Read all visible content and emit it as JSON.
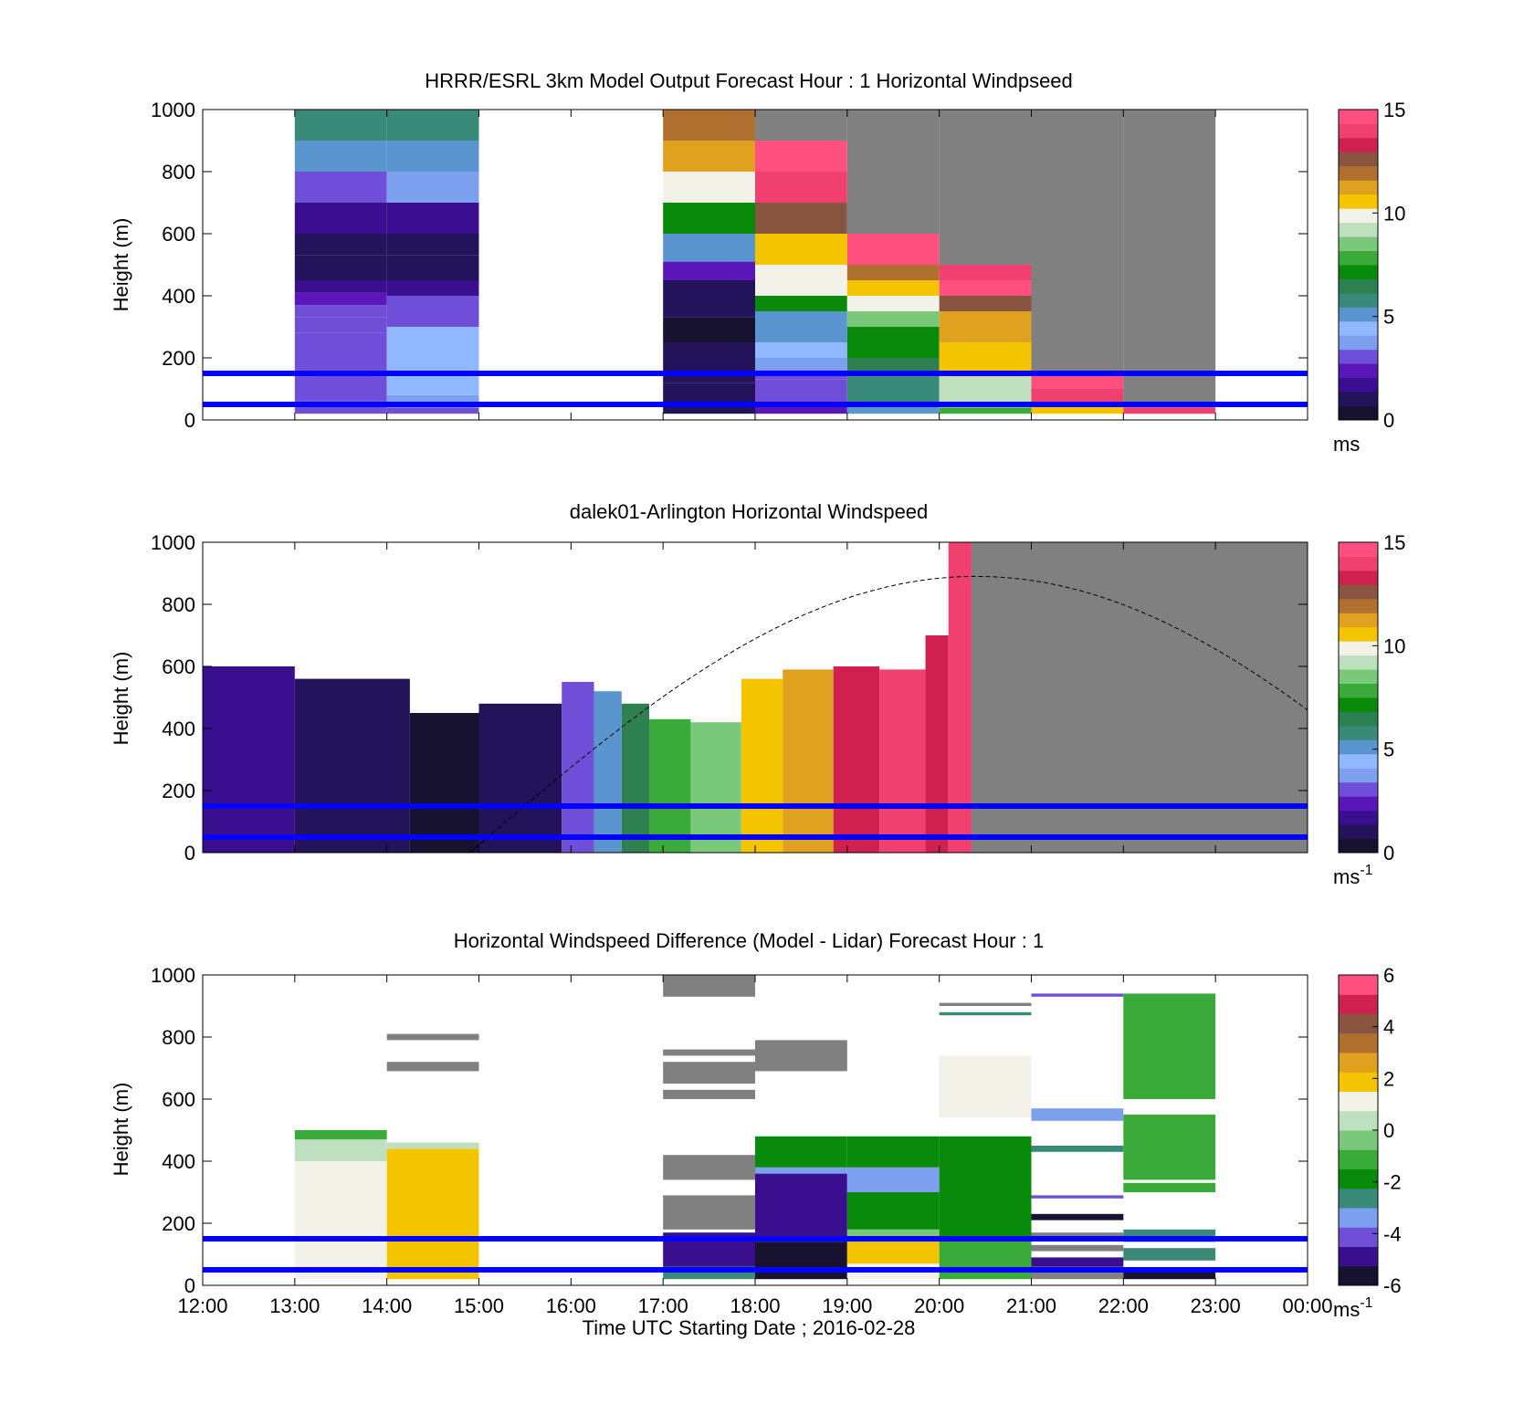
{
  "palettes": {
    "speed": [
      "#161230",
      "#23135a",
      "#3a0f8f",
      "#5a16b8",
      "#6f4fd8",
      "#7ca0ee",
      "#8fb8ff",
      "#5b95cf",
      "#3a8a7a",
      "#2e8050",
      "#0a8a0a",
      "#3aaa3a",
      "#7ac97a",
      "#bfe0bf",
      "#f2f2e8",
      "#f5c400",
      "#e0a020",
      "#b07030",
      "#8a5540",
      "#d02050",
      "#f04070",
      "#ff5080"
    ],
    "diff": [
      "#161230",
      "#3a0f8f",
      "#6f4fd8",
      "#7ca0ee",
      "#3a8a7a",
      "#0a8a0a",
      "#3aaa3a",
      "#7ac97a",
      "#bfe0bf",
      "#f2f2e8",
      "#f5c400",
      "#e0a020",
      "#b07030",
      "#8a5540",
      "#d02050",
      "#ff5080"
    ],
    "missing": "#808080",
    "marker_line": "#0000ff"
  },
  "x_axis": {
    "ticks": [
      "12:00",
      "13:00",
      "14:00",
      "15:00",
      "16:00",
      "17:00",
      "18:00",
      "19:00",
      "20:00",
      "21:00",
      "22:00",
      "23:00",
      "00:00"
    ],
    "label": "Time UTC  Starting Date ; 2016-02-28"
  },
  "chart_data": [
    {
      "type": "heatmap",
      "title": "HRRR/ESRL 3km Model Output   Forecast Hour : 1 Horizontal Windpseed",
      "ylabel": "Height (m)",
      "ylim": [
        0,
        1000
      ],
      "yticks": [
        "0",
        "200",
        "400",
        "600",
        "800",
        "1000"
      ],
      "colorbar": {
        "ticks": [
          "0",
          "5",
          "10",
          "15"
        ],
        "unit": "ms",
        "unit_sup": "",
        "range": [
          0,
          15
        ]
      },
      "marker_heights_m": [
        50,
        150
      ],
      "blocks": [
        {
          "hour": 13,
          "segments": [
            [
              20,
              60,
              3
            ],
            [
              60,
              100,
              3.2
            ],
            [
              100,
              200,
              3.4
            ],
            [
              200,
              280,
              3.3
            ],
            [
              280,
              330,
              3.2
            ],
            [
              330,
              370,
              2.8
            ],
            [
              370,
              410,
              2.2
            ],
            [
              410,
              450,
              2
            ],
            [
              450,
              530,
              1.2
            ],
            [
              530,
              600,
              1.0
            ],
            [
              600,
              700,
              1.6
            ],
            [
              700,
              800,
              3.2
            ],
            [
              800,
              900,
              5
            ],
            [
              900,
              1000,
              5.8
            ]
          ]
        },
        {
          "hour": 14,
          "segments": [
            [
              20,
              40,
              3.3
            ],
            [
              40,
              80,
              4
            ],
            [
              80,
              300,
              4.2
            ],
            [
              300,
              350,
              3.2
            ],
            [
              350,
              400,
              3
            ],
            [
              400,
              450,
              2
            ],
            [
              450,
              530,
              1.2
            ],
            [
              530,
              600,
              1.0
            ],
            [
              600,
              700,
              1.6
            ],
            [
              700,
              800,
              3.6
            ],
            [
              800,
              900,
              5.4
            ],
            [
              900,
              1000,
              5.9
            ]
          ]
        },
        {
          "hour": 17,
          "segments": [
            [
              20,
              120,
              1.0
            ],
            [
              120,
              250,
              0.8
            ],
            [
              250,
              330,
              0.5
            ],
            [
              330,
              400,
              0.8
            ],
            [
              400,
              450,
              1.2
            ],
            [
              450,
              510,
              2.4
            ],
            [
              510,
              600,
              4.8
            ],
            [
              600,
              700,
              7.0
            ],
            [
              700,
              800,
              10.2
            ],
            [
              800,
              900,
              11.0
            ],
            [
              900,
              1000,
              12.2
            ]
          ]
        },
        {
          "hour": 18,
          "segments": [
            [
              20,
              60,
              2.6
            ],
            [
              60,
              130,
              3.0
            ],
            [
              130,
              160,
              3.4
            ],
            [
              160,
              200,
              3.6
            ],
            [
              200,
              250,
              4.2
            ],
            [
              250,
              300,
              5.0
            ],
            [
              300,
              350,
              5.2
            ],
            [
              350,
              400,
              7.0
            ],
            [
              400,
              450,
              9.8
            ],
            [
              450,
              500,
              9.8
            ],
            [
              500,
              600,
              10.6
            ],
            [
              600,
              700,
              12.3
            ],
            [
              700,
              800,
              14.2
            ],
            [
              800,
              900,
              14.8
            ],
            [
              900,
              1000,
              "missing"
            ]
          ]
        },
        {
          "hour": 19,
          "segments": [
            [
              20,
              40,
              4.8
            ],
            [
              40,
              140,
              5.8
            ],
            [
              140,
              200,
              6.3
            ],
            [
              200,
              300,
              7.0
            ],
            [
              300,
              350,
              8.8
            ],
            [
              350,
              400,
              9.6
            ],
            [
              400,
              450,
              10.6
            ],
            [
              450,
              500,
              12.2
            ],
            [
              500,
              600,
              15
            ],
            [
              600,
              1000,
              "missing"
            ]
          ]
        },
        {
          "hour": 20,
          "segments": [
            [
              20,
              40,
              7.5
            ],
            [
              40,
              140,
              9.3
            ],
            [
              140,
              250,
              10.5
            ],
            [
              250,
              350,
              11.5
            ],
            [
              350,
              400,
              12.5
            ],
            [
              400,
              450,
              14.5
            ],
            [
              450,
              500,
              13.8
            ],
            [
              500,
              1000,
              "missing"
            ]
          ]
        },
        {
          "hour": 21,
          "segments": [
            [
              20,
              50,
              10.8
            ],
            [
              50,
              100,
              13.8
            ],
            [
              100,
              150,
              14.5
            ],
            [
              150,
              1000,
              "missing"
            ]
          ]
        },
        {
          "hour": 22,
          "segments": [
            [
              20,
              40,
              14
            ],
            [
              40,
              1000,
              "missing"
            ]
          ]
        }
      ]
    },
    {
      "type": "heatmap",
      "title": "dalek01-Arlington  Horizontal Windspeed",
      "ylabel": "Height (m)",
      "ylim": [
        0,
        1000
      ],
      "yticks": [
        "0",
        "200",
        "400",
        "600",
        "800",
        "1000"
      ],
      "colorbar": {
        "ticks": [
          "0",
          "5",
          "10",
          "15"
        ],
        "unit": "ms",
        "unit_sup": "-1",
        "range": [
          0,
          15
        ]
      },
      "marker_heights_m": [
        50,
        150
      ],
      "columns": [
        {
          "t": [
            12.0,
            13.0
          ],
          "top": 600,
          "v": 1.6
        },
        {
          "t": [
            13.0,
            14.25
          ],
          "top": 560,
          "v": 1.1
        },
        {
          "t": [
            14.25,
            15.0
          ],
          "top": 450,
          "v": 0.6
        },
        {
          "t": [
            15.0,
            15.9
          ],
          "top": 480,
          "v": 0.8
        },
        {
          "t": [
            15.9,
            16.25
          ],
          "top": 550,
          "v": 2.8
        },
        {
          "t": [
            16.25,
            16.55
          ],
          "top": 520,
          "v": 5.0
        },
        {
          "t": [
            16.55,
            16.85
          ],
          "top": 480,
          "v": 6.3
        },
        {
          "t": [
            16.85,
            17.3
          ],
          "top": 430,
          "v": 7.6
        },
        {
          "t": [
            17.3,
            17.85
          ],
          "top": 420,
          "v": 8.4
        },
        {
          "t": [
            17.85,
            18.3
          ],
          "top": 560,
          "v": 10.4
        },
        {
          "t": [
            18.3,
            18.85
          ],
          "top": 590,
          "v": 11.3
        },
        {
          "t": [
            18.85,
            19.35
          ],
          "top": 600,
          "v": 13.4
        },
        {
          "t": [
            19.35,
            19.85
          ],
          "top": 590,
          "v": 14.2
        },
        {
          "t": [
            19.85,
            20.1
          ],
          "top": 700,
          "v": 13.6
        },
        {
          "t": [
            20.1,
            20.35
          ],
          "top": 1000,
          "v": 13.8
        }
      ],
      "missing_from_hour": 20.35,
      "curve": {
        "peak_height_m": 890,
        "peak_hour": 20.4,
        "start_hour": 14.9,
        "end_hour": 24.0,
        "end_height_m": 430
      }
    },
    {
      "type": "heatmap",
      "title": "Horizontal Windspeed Difference (Model - Lidar) Forecast Hour : 1",
      "ylabel": "Height (m)",
      "ylim": [
        0,
        1000
      ],
      "yticks": [
        "0",
        "200",
        "400",
        "600",
        "800",
        "1000"
      ],
      "colorbar": {
        "ticks": [
          "-6",
          "-4",
          "-2",
          "0",
          "2",
          "4",
          "6"
        ],
        "unit": "ms",
        "unit_sup": "-1",
        "range": [
          -6,
          6
        ]
      },
      "marker_heights_m": [
        50,
        150
      ],
      "blocks": [
        {
          "hour": 13,
          "segments": [
            [
              20,
              400,
              1.4
            ],
            [
              400,
              470,
              0.6
            ],
            [
              470,
              500,
              -0.8
            ]
          ]
        },
        {
          "hour": 14,
          "segments": [
            [
              20,
              440,
              2.2
            ],
            [
              440,
              460,
              0.2
            ],
            [
              690,
              720,
              "missing"
            ],
            [
              790,
              810,
              "missing"
            ]
          ]
        },
        {
          "hour": 17,
          "segments": [
            [
              20,
              60,
              -2.6
            ],
            [
              60,
              170,
              -5.2
            ],
            [
              180,
              290,
              "missing"
            ],
            [
              340,
              420,
              "missing"
            ],
            [
              600,
              630,
              "missing"
            ],
            [
              650,
              720,
              "missing"
            ],
            [
              740,
              760,
              "missing"
            ],
            [
              930,
              1000,
              "missing"
            ]
          ]
        },
        {
          "hour": 18,
          "segments": [
            [
              20,
              140,
              -5.5
            ],
            [
              140,
              360,
              -5.2
            ],
            [
              360,
              380,
              -3.6
            ],
            [
              380,
              480,
              -2.0
            ],
            [
              690,
              790,
              "missing"
            ]
          ]
        },
        {
          "hour": 19,
          "segments": [
            [
              20,
              70,
              0.8
            ],
            [
              70,
              140,
              1.6
            ],
            [
              140,
              180,
              -0.6
            ],
            [
              180,
              300,
              -2.2
            ],
            [
              300,
              380,
              -3.2
            ],
            [
              380,
              480,
              -2.1
            ]
          ]
        },
        {
          "hour": 20,
          "segments": [
            [
              20,
              150,
              -1.4
            ],
            [
              150,
              480,
              -1.7
            ],
            [
              540,
              740,
              1.4
            ],
            [
              870,
              880,
              -2.6
            ],
            [
              900,
              910,
              "missing"
            ]
          ]
        },
        {
          "hour": 21,
          "segments": [
            [
              20,
              60,
              "missing"
            ],
            [
              60,
              90,
              -5.0
            ],
            [
              110,
              130,
              "missing"
            ],
            [
              150,
              170,
              "missing"
            ],
            [
              210,
              230,
              -5.8
            ],
            [
              280,
              290,
              -4.0
            ],
            [
              430,
              450,
              -2.8
            ],
            [
              530,
              570,
              -3.2
            ],
            [
              930,
              940,
              -4.0
            ]
          ]
        },
        {
          "hour": 22,
          "segments": [
            [
              20,
              50,
              -5.5
            ],
            [
              80,
              120,
              -2.8
            ],
            [
              140,
              180,
              -2.6
            ],
            [
              300,
              330,
              -1.4
            ],
            [
              340,
              550,
              -1.3
            ],
            [
              600,
              940,
              -1.4
            ]
          ]
        }
      ]
    }
  ]
}
